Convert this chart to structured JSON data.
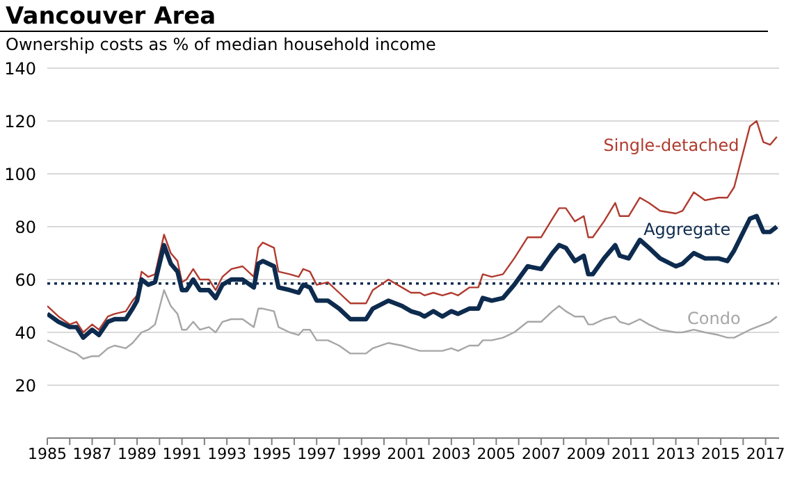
{
  "chart_data": {
    "type": "line",
    "title": "Vancouver Area",
    "subtitle": "Ownership costs as % of median household income",
    "x": [
      1985,
      1985.5,
      1986,
      1986.3,
      1986.6,
      1987,
      1987.3,
      1987.7,
      1988,
      1988.5,
      1988.8,
      1989,
      1989.2,
      1989.5,
      1989.8,
      1990.2,
      1990.5,
      1990.8,
      1991,
      1991.2,
      1991.5,
      1991.8,
      1992.2,
      1992.5,
      1992.8,
      1993.2,
      1993.7,
      1994.2,
      1994.4,
      1994.6,
      1995.1,
      1995.3,
      1995.8,
      1996.2,
      1996.4,
      1996.7,
      1997,
      1997.5,
      1998,
      1998.5,
      1999.2,
      1999.5,
      2000.2,
      2000.8,
      2001.2,
      2001.6,
      2001.8,
      2002.2,
      2002.6,
      2003,
      2003.3,
      2003.8,
      2004.2,
      2004.4,
      2004.8,
      2005.3,
      2005.8,
      2006.4,
      2007,
      2007.5,
      2007.8,
      2008.1,
      2008.5,
      2008.9,
      2009.1,
      2009.3,
      2009.8,
      2010.3,
      2010.5,
      2010.9,
      2011.4,
      2011.8,
      2012.3,
      2013,
      2013.3,
      2013.8,
      2014.3,
      2014.9,
      2015.3,
      2015.6,
      2016.3,
      2016.6,
      2016.9,
      2017.2,
      2017.5
    ],
    "series": [
      {
        "name": "Single-detached",
        "color": "#b03a2e",
        "values": [
          50,
          46,
          43,
          44,
          40,
          43,
          41,
          46,
          47,
          48,
          52,
          54,
          63,
          61,
          62,
          77,
          70,
          67,
          59,
          60,
          64,
          60,
          60,
          56,
          61,
          64,
          65,
          61,
          72,
          74,
          72,
          63,
          62,
          61,
          64,
          63,
          58,
          59,
          55,
          51,
          51,
          56,
          60,
          57,
          55,
          55,
          54,
          55,
          54,
          55,
          54,
          57,
          57,
          62,
          61,
          62,
          68,
          76,
          76,
          83,
          87,
          87,
          82,
          84,
          76,
          76,
          82,
          89,
          84,
          84,
          91,
          89,
          86,
          85,
          86,
          93,
          90,
          91,
          91,
          95,
          118,
          120,
          112,
          111,
          114
        ]
      },
      {
        "name": "Aggregate",
        "color": "#0d2b4e",
        "values": [
          47,
          44,
          42,
          42,
          38,
          41,
          39,
          44,
          45,
          45,
          49,
          52,
          60,
          58,
          59,
          73,
          66,
          63,
          56,
          56,
          60,
          56,
          56,
          53,
          58,
          60,
          60,
          57,
          66,
          67,
          65,
          57,
          56,
          55,
          58,
          57,
          52,
          52,
          49,
          45,
          45,
          49,
          52,
          50,
          48,
          47,
          46,
          48,
          46,
          48,
          47,
          49,
          49,
          53,
          52,
          53,
          58,
          65,
          64,
          70,
          73,
          72,
          67,
          69,
          62,
          62,
          68,
          73,
          69,
          68,
          75,
          72,
          68,
          65,
          66,
          70,
          68,
          68,
          67,
          71,
          83,
          84,
          78,
          78,
          80
        ]
      },
      {
        "name": "Condo",
        "color": "#a6a6a6",
        "values": [
          37,
          35,
          33,
          32,
          30,
          31,
          31,
          34,
          35,
          34,
          36,
          38,
          40,
          41,
          43,
          56,
          50,
          47,
          41,
          41,
          44,
          41,
          42,
          40,
          44,
          45,
          45,
          42,
          49,
          49,
          48,
          42,
          40,
          39,
          41,
          41,
          37,
          37,
          35,
          32,
          32,
          34,
          36,
          35,
          34,
          33,
          33,
          33,
          33,
          34,
          33,
          35,
          35,
          37,
          37,
          38,
          40,
          44,
          44,
          48,
          50,
          48,
          46,
          46,
          43,
          43,
          45,
          46,
          44,
          43,
          45,
          43,
          41,
          40,
          40,
          41,
          40,
          39,
          38,
          38,
          41,
          42,
          43,
          44,
          46
        ]
      }
    ],
    "xlim": [
      1985,
      2017.6
    ],
    "xticks": [
      1985,
      {
        "value": 1986,
        "label": null
      },
      1987,
      {
        "value": 1988,
        "label": null
      },
      1989,
      {
        "value": 1990,
        "label": null
      },
      1991,
      {
        "value": 1992,
        "label": null
      },
      1993,
      {
        "value": 1994,
        "label": null
      },
      1995,
      {
        "value": 1996,
        "label": null
      },
      1997,
      {
        "value": 1998,
        "label": null
      },
      1999,
      {
        "value": 2000,
        "label": null
      },
      2001,
      {
        "value": 2002,
        "label": null
      },
      2003,
      {
        "value": 2004,
        "label": null
      },
      2005,
      {
        "value": 2006,
        "label": null
      },
      2007,
      {
        "value": 2008,
        "label": null
      },
      2009,
      {
        "value": 2010,
        "label": null
      },
      2011,
      {
        "value": 2012,
        "label": null
      },
      2013,
      {
        "value": 2014,
        "label": null
      },
      2015,
      {
        "value": 2016,
        "label": null
      },
      2017
    ],
    "ylim": [
      0,
      140
    ],
    "yticks": [
      20,
      40,
      60,
      80,
      100,
      120,
      140
    ],
    "ref_lines": [
      {
        "axis": "y",
        "value": 58.5,
        "color": "#0d2b4e",
        "line_style": "dotted"
      }
    ],
    "grid": "y",
    "marker": "none",
    "line_style": "solid"
  }
}
